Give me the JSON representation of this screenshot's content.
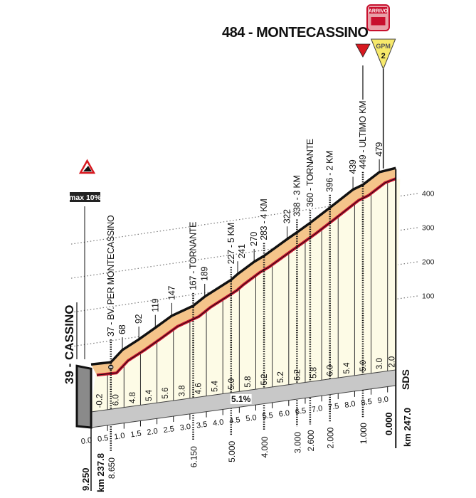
{
  "chart_data": {
    "type": "area",
    "title": "484 - MONTECASSINO",
    "finish_label": "ARRIVO",
    "gpm_label": "GPM",
    "gpm_category": "2",
    "max_gradient_label": "max 10%",
    "avg_gradient_label": "5.1%",
    "start_label": "39 - CASSINO",
    "start_km_label": "km 237.8",
    "end_km_label": "km 247.0",
    "end_road_label": "SDS",
    "y_ticks": [
      "100",
      "200",
      "300",
      "400"
    ],
    "y_tick_values": [
      100,
      200,
      300,
      400
    ],
    "ylim": [
      0,
      500
    ],
    "xlim": [
      0,
      9.25
    ],
    "x_ticks": [
      "0.0",
      "0.5",
      "1.0",
      "1.5",
      "2.0",
      "2.5",
      "3.0",
      "3.5",
      "4.0",
      "4.5",
      "5.0",
      "5.5",
      "6.0",
      "6.5",
      "7.0",
      "7.5",
      "8.0",
      "8.5",
      "9.0"
    ],
    "x_tick_values": [
      0,
      0.5,
      1,
      1.5,
      2,
      2.5,
      3,
      3.5,
      4,
      4.5,
      5,
      5.5,
      6,
      6.5,
      7,
      7.5,
      8,
      8.5,
      9
    ],
    "segment_gradients": [
      "-0.2",
      "6.0",
      "4.8",
      "5.4",
      "5.6",
      "3.8",
      "4.6",
      "5.4",
      "5.0",
      "5.8",
      "5.2",
      "5.2",
      "6.2",
      "5.8",
      "6.0",
      "5.4",
      "5.0",
      "3.0",
      "2.0"
    ],
    "points": [
      {
        "km": 0.0,
        "elev": 39,
        "label": ""
      },
      {
        "km": 0.6,
        "elev": 37,
        "label": "37 - BV. PER MONTECASSINO",
        "to_go": "8.650"
      },
      {
        "km": 0.95,
        "elev": 68,
        "label": "68"
      },
      {
        "km": 1.45,
        "elev": 92,
        "label": "92"
      },
      {
        "km": 1.95,
        "elev": 119,
        "label": "119"
      },
      {
        "km": 2.45,
        "elev": 147,
        "label": "147"
      },
      {
        "km": 3.1,
        "elev": 167,
        "label": "167 - TORNANTE",
        "to_go": "6.150"
      },
      {
        "km": 3.45,
        "elev": 189,
        "label": "189"
      },
      {
        "km": 4.25,
        "elev": 227,
        "label": "227 - 5 KM",
        "to_go": "5.000"
      },
      {
        "km": 4.45,
        "elev": 241,
        "label": "241"
      },
      {
        "km": 4.95,
        "elev": 270,
        "label": "270"
      },
      {
        "km": 5.25,
        "elev": 283,
        "label": "283 - 4 KM",
        "to_go": "4.000"
      },
      {
        "km": 5.95,
        "elev": 322,
        "label": "322"
      },
      {
        "km": 6.25,
        "elev": 338,
        "label": "338 - 3 KM",
        "to_go": "3.000"
      },
      {
        "km": 6.65,
        "elev": 360,
        "label": "360 - TORNANTE",
        "to_go": "2.600"
      },
      {
        "km": 7.25,
        "elev": 396,
        "label": "396 - 2 KM",
        "to_go": "2.000"
      },
      {
        "km": 7.95,
        "elev": 439,
        "label": "439"
      },
      {
        "km": 8.25,
        "elev": 449,
        "label": "449 - ULTIMO KM",
        "to_go": "1.000"
      },
      {
        "km": 8.75,
        "elev": 479,
        "label": "479"
      },
      {
        "km": 9.25,
        "elev": 484,
        "label": ""
      }
    ],
    "start_to_go": "9.250",
    "end_to_go": "0.000",
    "colors": {
      "profile_fill": "#f5c48a",
      "profile_top": "#111111",
      "profile_bottom": "#c8102e",
      "columns": "#fdfbe6",
      "base_band": "#c8c8c8",
      "gpm": "#f7e96b",
      "ultimo_km": "#d71920"
    }
  }
}
